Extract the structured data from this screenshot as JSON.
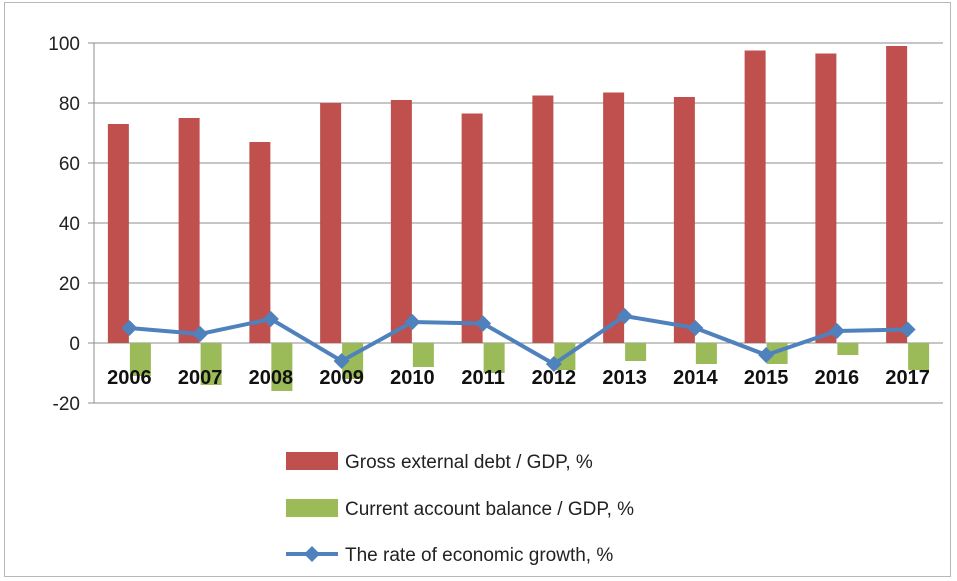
{
  "chart_data": {
    "type": "bar",
    "title": "",
    "xlabel": "",
    "ylabel": "",
    "ylim": [
      -20,
      100
    ],
    "yticks": [
      -20,
      0,
      20,
      40,
      60,
      80,
      100
    ],
    "grid": true,
    "legend_position": "bottom",
    "categories": [
      "2006",
      "2007",
      "2008",
      "2009",
      "2010",
      "2011",
      "2012",
      "2013",
      "2014",
      "2015",
      "2016",
      "2017"
    ],
    "series": [
      {
        "name": "Gross external debt / GDP, %",
        "kind": "bar",
        "color": "#c0504d",
        "values": [
          73,
          75,
          67,
          80,
          81,
          76.5,
          82.5,
          83.5,
          82,
          97.5,
          96.5,
          99
        ]
      },
      {
        "name": "Current account balance / GDP, %",
        "kind": "bar",
        "color": "#9bbb59",
        "values": [
          -11,
          -14,
          -16,
          -12,
          -8,
          -10,
          -9,
          -6,
          -7,
          -7,
          -4,
          -9
        ]
      },
      {
        "name": "The rate of economic growth, %",
        "kind": "line",
        "marker": "diamond",
        "color": "#4f81bd",
        "values": [
          5,
          3,
          8,
          -6,
          7,
          6.5,
          -7,
          9,
          5,
          -4,
          4,
          4.5
        ]
      }
    ]
  }
}
